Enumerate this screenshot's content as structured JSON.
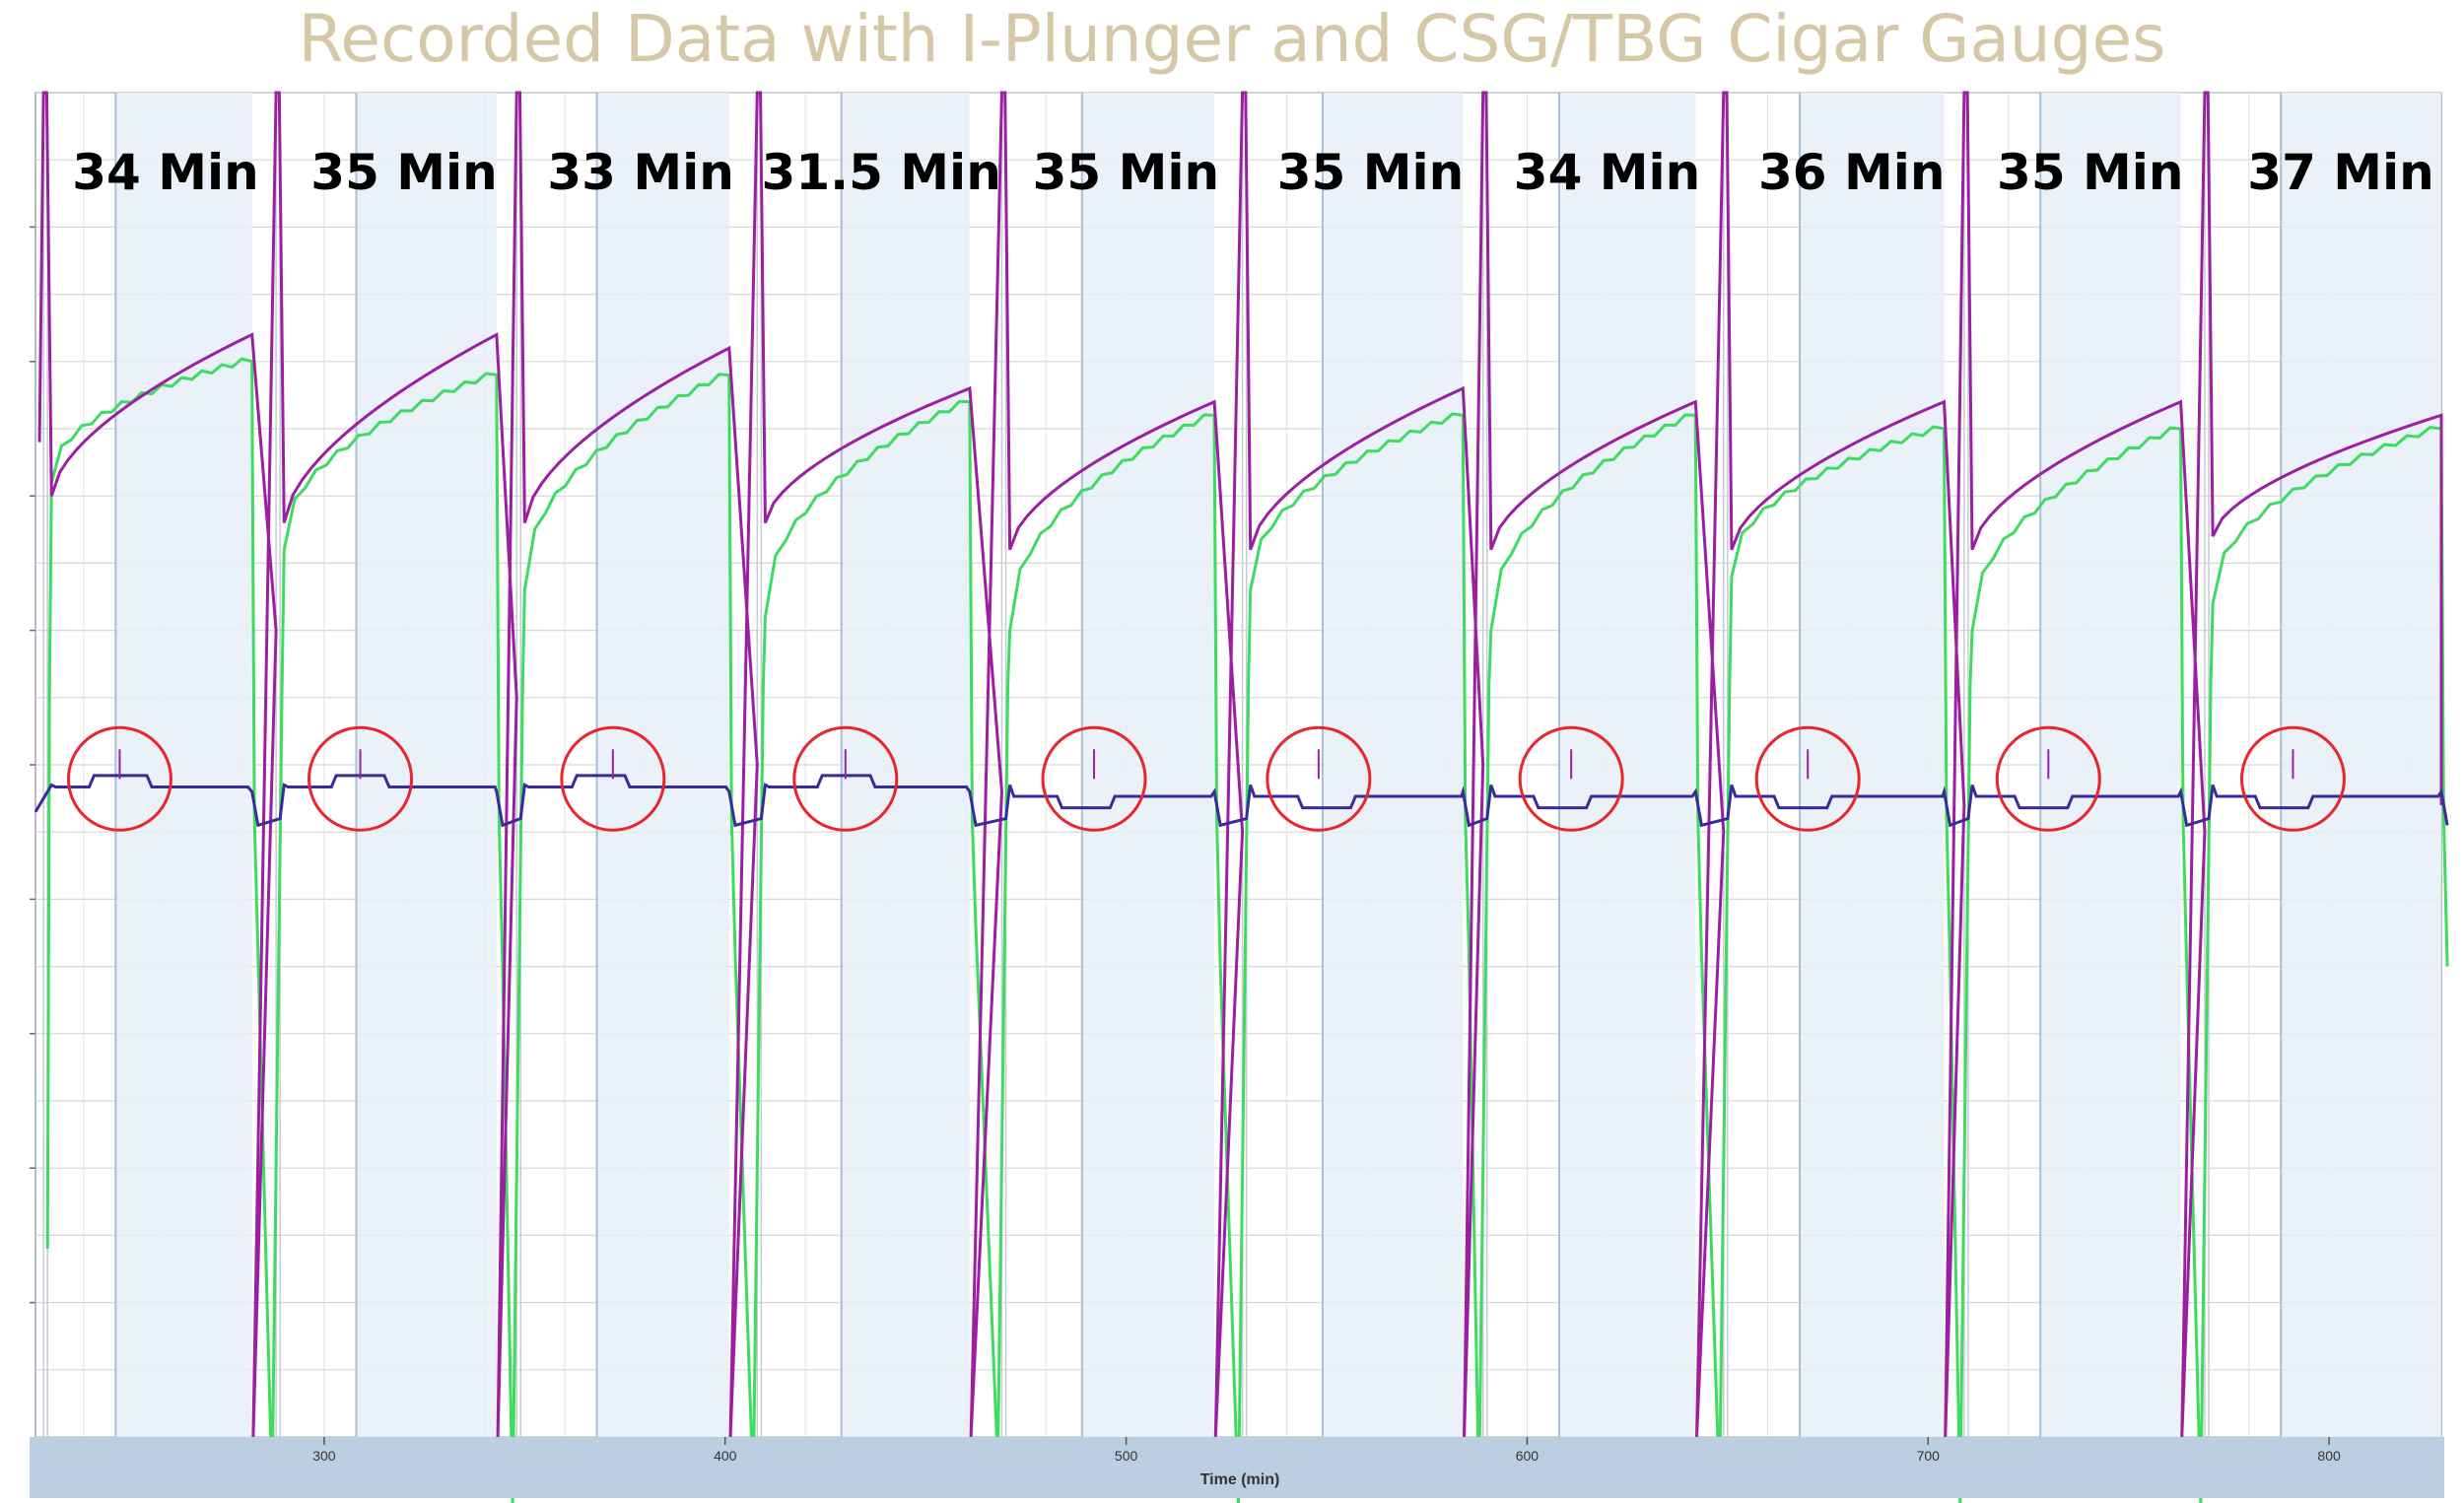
{
  "title": "Recorded Data with I-Plunger and CSG/TBG Cigar Gauges",
  "colors": {
    "title": "#d6c7a7",
    "shade": "#e6eef7",
    "grid": "#d6d6d6",
    "purple": "#9b1fa3",
    "green": "#3ddc5f",
    "navy": "#3a2a9c",
    "circle": "#e8262b",
    "axis_bar": "#bccfe2"
  },
  "chart_data": {
    "type": "line",
    "title": "Recorded Data with I-Plunger and CSG/TBG Cigar Gauges",
    "xlabel": "Time   (min)",
    "ylabel": "",
    "xlim": [
      228,
      828
    ],
    "ylim": [
      0,
      100
    ],
    "x_ticks": [
      300,
      400,
      500,
      600,
      700,
      800
    ],
    "grid": true,
    "legend": "none",
    "cycle_labels": [
      "34 Min",
      "35 Min",
      "33 Min",
      "31.5 Min",
      "35 Min",
      "35 Min",
      "34 Min",
      "36 Min",
      "35 Min",
      "37 Min"
    ],
    "shaded_intervals": [
      [
        248,
        282
      ],
      [
        308,
        343
      ],
      [
        368,
        401
      ],
      [
        429,
        461
      ],
      [
        489,
        522
      ],
      [
        549,
        584
      ],
      [
        608,
        642
      ],
      [
        668,
        704
      ],
      [
        728,
        763
      ],
      [
        788,
        828
      ]
    ],
    "cycle_starts": [
      232,
      290,
      350,
      410,
      471,
      531,
      591,
      651,
      711,
      771
    ],
    "cycle_ends": [
      282,
      343,
      401,
      461,
      522,
      584,
      642,
      704,
      763,
      828
    ],
    "series": [
      {
        "peak_after_shut_in": [
          82,
          82,
          81,
          78,
          77,
          78,
          77,
          77,
          77,
          76
        ],
        "minimum_after_opening": [
          70,
          68,
          68,
          68,
          66,
          66,
          66,
          66,
          66,
          67
        ],
        "after_open_drop": [
          60,
          55,
          50,
          48,
          45,
          50,
          45,
          47,
          45,
          47
        ]
      },
      {
        "start_after_opening": [
          46,
          41,
          38,
          36,
          35,
          38,
          35,
          39,
          35,
          37
        ],
        "plateau_before_shut_in": [
          80,
          79,
          79,
          77,
          76,
          76,
          76,
          75,
          75,
          75
        ],
        "minimum_at_shut_in": [
          -4,
          -5,
          -4,
          -2,
          -5,
          -4,
          -4,
          -5,
          -5,
          -5
        ]
      },
      {
        "baseline": [
          48,
          48,
          48,
          48,
          48,
          48,
          48,
          48,
          48,
          48
        ],
        "circled_arrival_time": [
          249,
          309,
          372,
          430,
          492,
          548,
          611,
          670,
          730,
          791
        ]
      }
    ]
  }
}
